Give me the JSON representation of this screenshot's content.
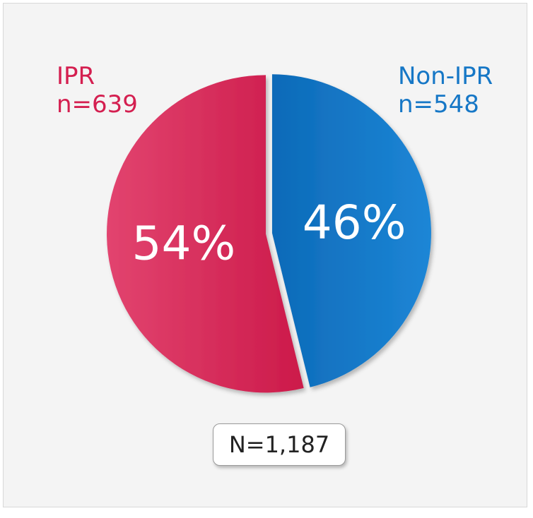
{
  "chart_data": {
    "type": "pie",
    "slices": [
      {
        "label": "IPR",
        "count_label": "n=639",
        "percent_label": "54%",
        "value": 639,
        "color": "#d41f50"
      },
      {
        "label": "Non-IPR",
        "count_label": "n=548",
        "percent_label": "46%",
        "value": 548,
        "color": "#1677c6"
      }
    ],
    "total_label": "N=1,187",
    "total": 1187
  }
}
